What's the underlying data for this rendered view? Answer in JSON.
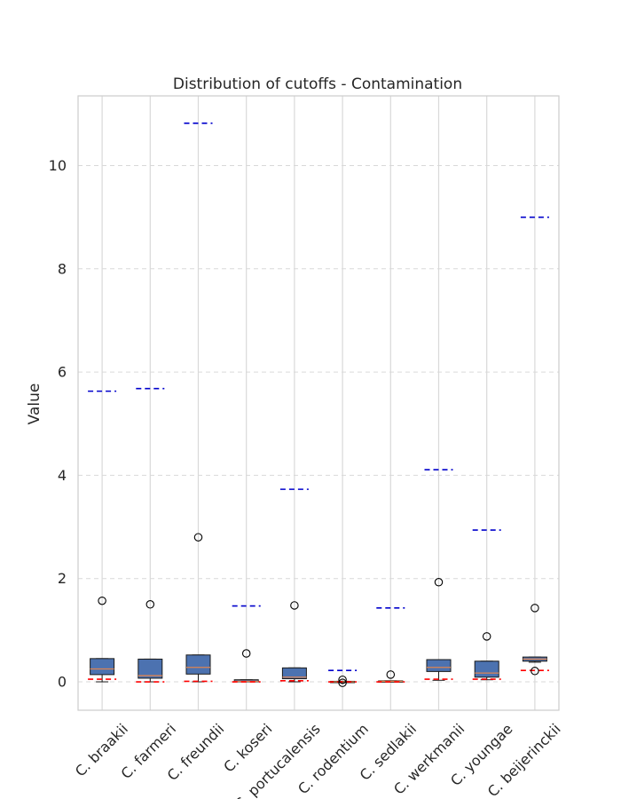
{
  "chart_data": {
    "type": "box",
    "title": "Distribution of cutoffs - Contamination",
    "xlabel": "",
    "ylabel": "Value",
    "ylim": [
      -0.55,
      11.35
    ],
    "yticks": [
      0,
      2,
      4,
      6,
      8,
      10
    ],
    "grid": true,
    "categories": [
      "C. braakii",
      "C. farmeri",
      "C. freundii",
      "C. koseri",
      "C. portucalensis",
      "C. rodentium",
      "C. sedlakii",
      "C. werkmanii",
      "C. youngae",
      "C. beijerinckii"
    ],
    "boxes": [
      {
        "q1": 0.14,
        "median": 0.25,
        "q3": 0.45,
        "whisker_low": 0.0,
        "whisker_high": 0.45,
        "outliers": [
          1.57
        ],
        "red_line": 0.05,
        "blue_line": 5.63
      },
      {
        "q1": 0.07,
        "median": 0.12,
        "q3": 0.44,
        "whisker_low": 0.0,
        "whisker_high": 0.44,
        "outliers": [
          1.5
        ],
        "red_line": 0.0,
        "blue_line": 5.68
      },
      {
        "q1": 0.15,
        "median": 0.28,
        "q3": 0.52,
        "whisker_low": 0.0,
        "whisker_high": 0.52,
        "outliers": [
          2.8
        ],
        "red_line": 0.01,
        "blue_line": 10.82
      },
      {
        "q1": 0.0,
        "median": 0.01,
        "q3": 0.04,
        "whisker_low": 0.0,
        "whisker_high": 0.04,
        "outliers": [
          0.55
        ],
        "red_line": 0.0,
        "blue_line": 1.47
      },
      {
        "q1": 0.06,
        "median": 0.09,
        "q3": 0.27,
        "whisker_low": 0.0,
        "whisker_high": 0.27,
        "outliers": [
          1.48
        ],
        "red_line": 0.02,
        "blue_line": 3.73
      },
      {
        "q1": 0.0,
        "median": 0.0,
        "q3": 0.01,
        "whisker_low": 0.0,
        "whisker_high": 0.01,
        "outliers": [
          0.04,
          -0.02
        ],
        "red_line": 0.0,
        "blue_line": 0.22
      },
      {
        "q1": 0.0,
        "median": 0.01,
        "q3": 0.02,
        "whisker_low": 0.0,
        "whisker_high": 0.02,
        "outliers": [
          0.14
        ],
        "red_line": 0.0,
        "blue_line": 1.43
      },
      {
        "q1": 0.2,
        "median": 0.28,
        "q3": 0.43,
        "whisker_low": 0.03,
        "whisker_high": 0.43,
        "outliers": [
          1.93
        ],
        "red_line": 0.05,
        "blue_line": 4.11
      },
      {
        "q1": 0.09,
        "median": 0.17,
        "q3": 0.4,
        "whisker_low": 0.04,
        "whisker_high": 0.4,
        "outliers": [
          0.88
        ],
        "red_line": 0.05,
        "blue_line": 2.94
      },
      {
        "q1": 0.4,
        "median": 0.44,
        "q3": 0.48,
        "whisker_low": 0.38,
        "whisker_high": 0.48,
        "outliers": [
          1.43,
          0.21
        ],
        "red_line": 0.22,
        "blue_line": 9.0
      }
    ],
    "colors": {
      "box_fill": "#4c72b0",
      "box_edge": "#1a1a1a",
      "median": "#dd8452",
      "red_line": "#ff0000",
      "blue_line": "#0000cc",
      "grid": "#d9d9d9",
      "frame": "#cccccc"
    }
  }
}
